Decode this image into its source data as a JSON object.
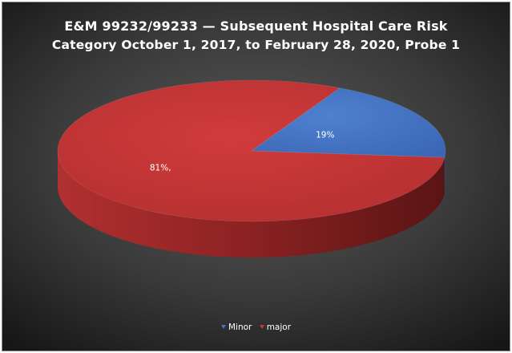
{
  "chart_data": {
    "type": "pie",
    "title": "E&M 99232/99233 — Subsequent Hospital Care Risk",
    "subtitle": "Category October 1, 2017, to February 28, 2020, Probe 1",
    "slices": [
      {
        "name": "Minor",
        "value": 19,
        "label": "19%",
        "color": "#4472c4"
      },
      {
        "name": "major",
        "value": 81,
        "label": "81%,",
        "color": "#c0393b"
      }
    ],
    "legend": {
      "placement": "bottom",
      "items": [
        "Minor",
        "major"
      ]
    },
    "style": "3d"
  }
}
